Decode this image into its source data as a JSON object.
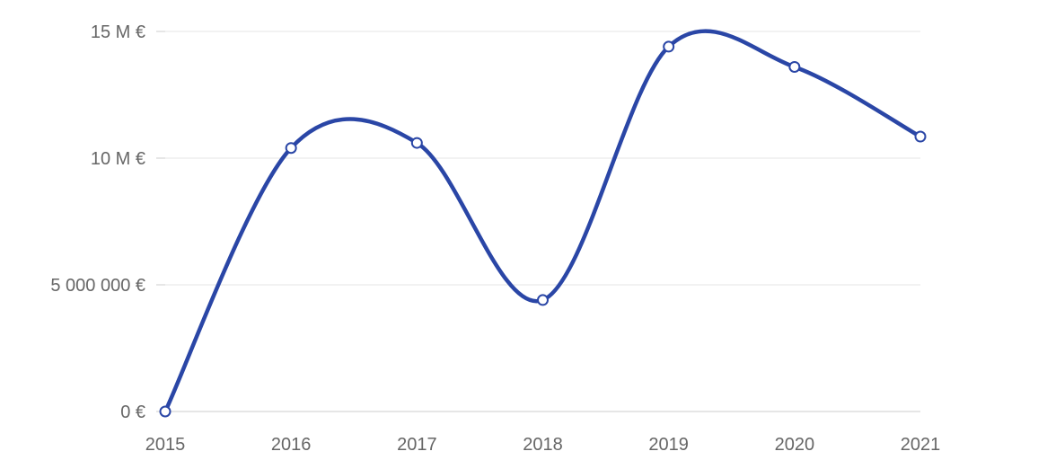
{
  "chart_data": {
    "type": "line",
    "title": "",
    "xlabel": "",
    "ylabel": "",
    "categories": [
      "2015",
      "2016",
      "2017",
      "2018",
      "2019",
      "2020",
      "2021"
    ],
    "series": [
      {
        "values": [
          0,
          10400000,
          10600000,
          4400000,
          14400000,
          13600000,
          10850000
        ],
        "color": "#2a46a6"
      }
    ],
    "ylim": [
      0,
      15000000
    ],
    "y_ticks": [
      {
        "value": 0,
        "label": "0 €"
      },
      {
        "value": 5000000,
        "label": "5 000 000 €"
      },
      {
        "value": 10000000,
        "label": "10 M €"
      },
      {
        "value": 15000000,
        "label": "15 M €"
      }
    ],
    "grid": true,
    "legend": "none",
    "smooth": true
  }
}
